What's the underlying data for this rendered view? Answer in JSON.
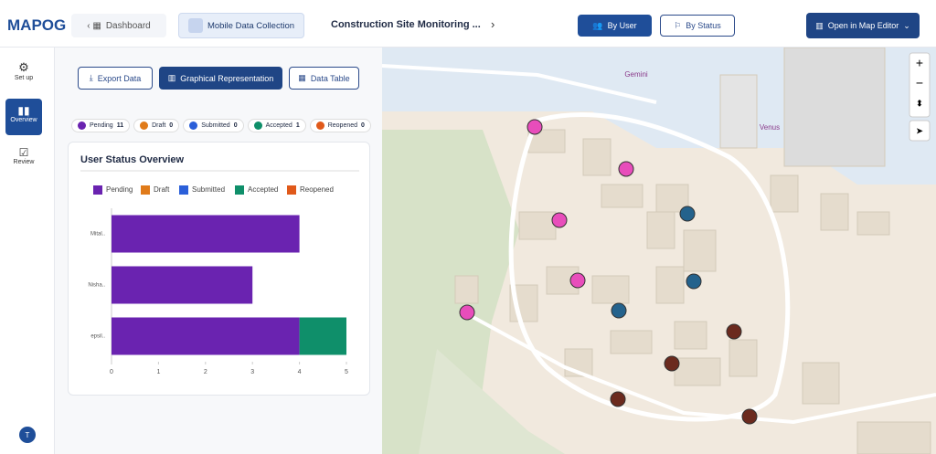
{
  "header": {
    "logo": "MAPOG",
    "breadcrumb": [
      "Dashboard",
      "Mobile Data Collection",
      "Construction Site Monitoring ..."
    ],
    "buttons": [
      "By User",
      "By Status",
      "Open in Map Editor"
    ]
  },
  "sidebar": [
    "Set up",
    "Overview",
    "Review"
  ],
  "avatar": "T",
  "toolbar": [
    "Export Data",
    "Graphical Representation",
    "Data Table"
  ],
  "status_chips": [
    {
      "label": "Pending",
      "count": 11,
      "color": "#6a23b0"
    },
    {
      "label": "Draft",
      "count": 0,
      "color": "#e07b1a"
    },
    {
      "label": "Submitted",
      "count": 0,
      "color": "#2b5fd9"
    },
    {
      "label": "Accepted",
      "count": 1,
      "color": "#0f8f6a"
    },
    {
      "label": "Reopened",
      "count": 0,
      "color": "#e0591a"
    }
  ],
  "chart_data": {
    "type": "bar",
    "orientation": "horizontal",
    "stacked": true,
    "title": "User Status Overview",
    "categories": [
      "Mital..",
      "Nisha..",
      "epsil.."
    ],
    "series": [
      {
        "name": "Pending",
        "color": "#6a23b0",
        "values": [
          4,
          3,
          4
        ]
      },
      {
        "name": "Draft",
        "color": "#e07b1a",
        "values": [
          0,
          0,
          0
        ]
      },
      {
        "name": "Submitted",
        "color": "#2b5fd9",
        "values": [
          0,
          0,
          0
        ]
      },
      {
        "name": "Accepted",
        "color": "#0f8f6a",
        "values": [
          0,
          0,
          1
        ]
      },
      {
        "name": "Reopened",
        "color": "#e0591a",
        "values": [
          0,
          0,
          0
        ]
      }
    ],
    "xlim": [
      0,
      5
    ],
    "xticks": [
      0,
      1,
      2,
      3,
      4,
      5
    ],
    "grid": false,
    "legend": "top"
  },
  "map": {
    "labels": [
      "Gemini",
      "Venus"
    ],
    "controls": [
      "+",
      "−"
    ]
  }
}
